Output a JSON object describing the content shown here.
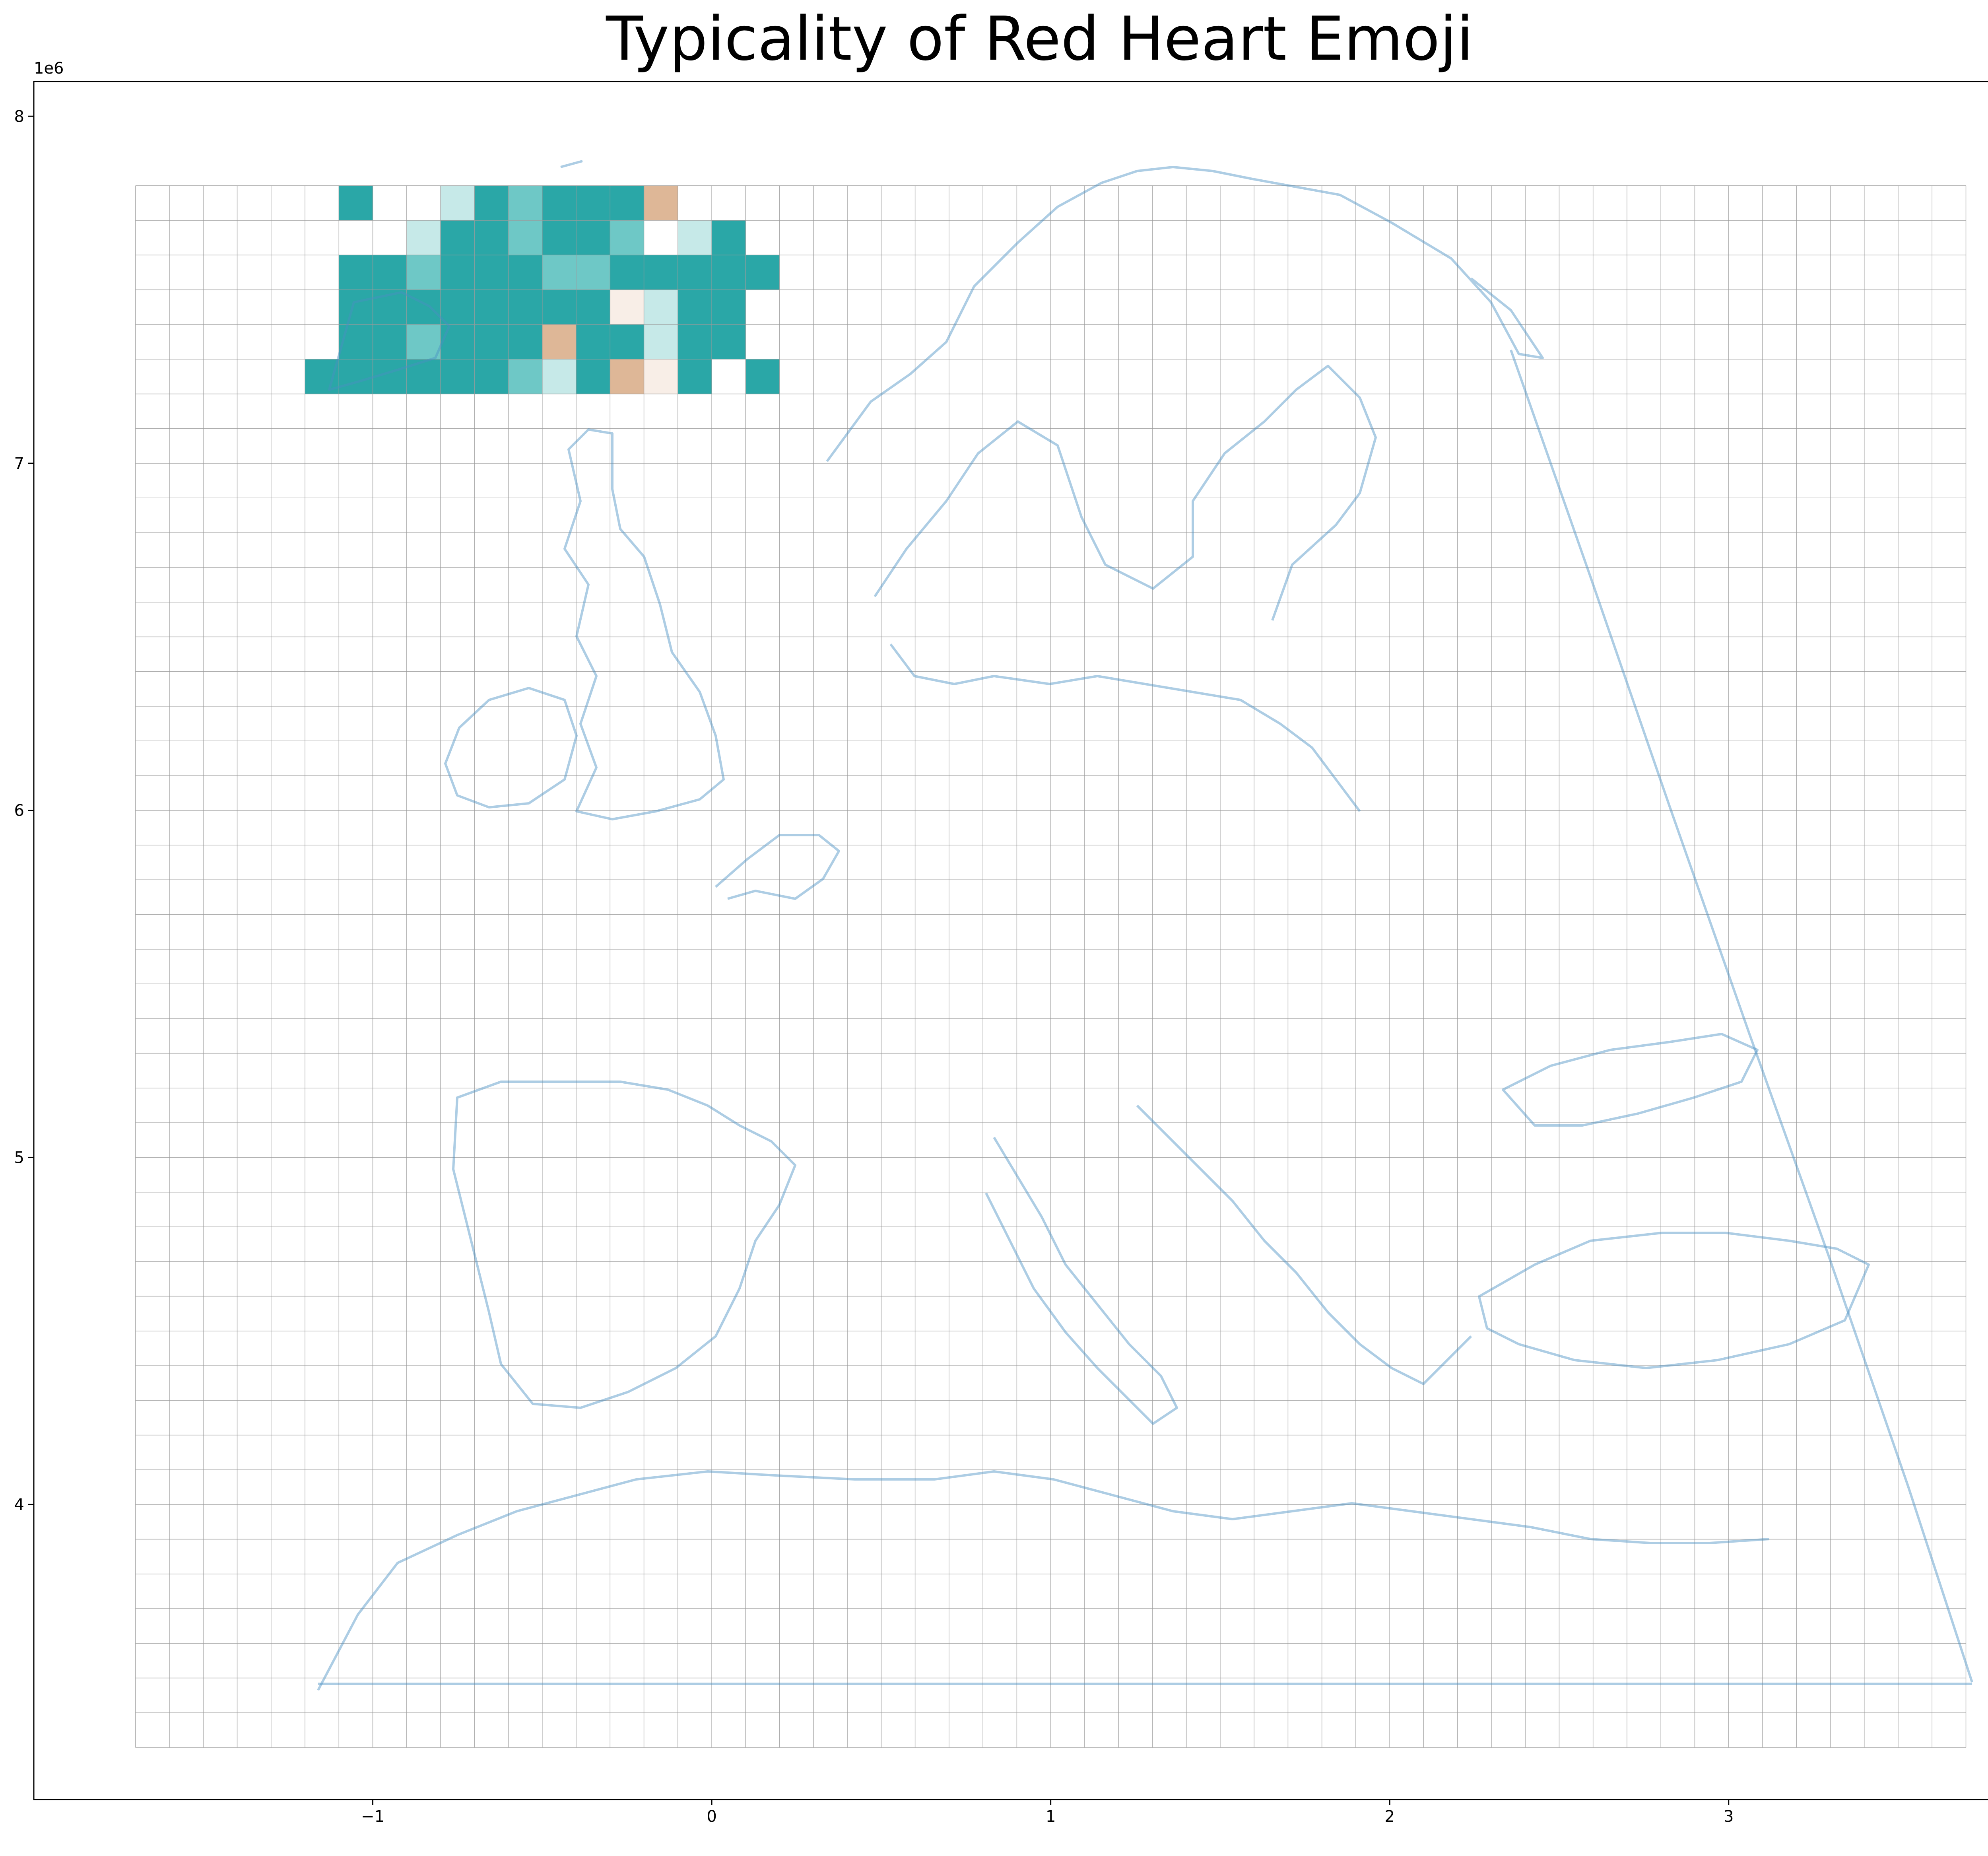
{
  "chart_data": {
    "type": "heatmap",
    "title": "Typicality of Red Heart Emoji",
    "x_ticks": [
      "−1",
      "0",
      "1",
      "2",
      "3"
    ],
    "x_tick_values": [
      -1000000,
      0,
      1000000,
      2000000,
      3000000
    ],
    "y_ticks": [
      "4",
      "5",
      "6",
      "7",
      "8"
    ],
    "y_tick_values": [
      4000000,
      5000000,
      6000000,
      7000000,
      8000000
    ],
    "x_offset_text": "1e6",
    "y_offset_text": "1e6",
    "xlim": [
      -2000000,
      3900000
    ],
    "ylim": [
      3150000,
      8100000
    ],
    "grid_extent": {
      "x": [
        -1700000,
        3700000
      ],
      "y": [
        3300000,
        7800000
      ]
    },
    "cell_size": 100000,
    "colors": {
      "teal_strong": "#2aa7a7",
      "teal_mid": "#6ec8c6",
      "teal_light": "#c6e9e8",
      "tan_strong": "#deb797",
      "tan_light": "#f1ddcf",
      "cream": "#f8eee7",
      "grid_line": "#9a9a9a",
      "coastline": "#4a90c4"
    },
    "color_scale": [
      "#2aa7a7",
      "#6ec8c6",
      "#c6e9e8",
      "#f8eee7",
      "#f1ddcf",
      "#deb797"
    ],
    "cells_legend": "value: 1 = strong teal ... 6 = strong tan (qualitative levels read from map)",
    "cells": [
      [
        6,
        7800000,
        6,
        0
      ],
      [
        9,
        7800000,
        2,
        0
      ],
      [
        10,
        7800000,
        0,
        0
      ],
      [
        11,
        7800000,
        1,
        0
      ],
      [
        12,
        7800000,
        6,
        0
      ],
      [
        13,
        7800000,
        6,
        0
      ],
      [
        14,
        7800000,
        0,
        0
      ],
      [
        15,
        7800000,
        5,
        0
      ],
      [
        8,
        7700000,
        2,
        0
      ],
      [
        9,
        7700000,
        0,
        0
      ],
      [
        10,
        7700000,
        0,
        0
      ],
      [
        11,
        7700000,
        1,
        0
      ],
      [
        12,
        7700000,
        0,
        0
      ],
      [
        13,
        7700000,
        6,
        0
      ],
      [
        14,
        7700000,
        1,
        0
      ],
      [
        16,
        7700000,
        2,
        0
      ],
      [
        17,
        7700000,
        6,
        0
      ],
      [
        6,
        7600000,
        6,
        0
      ],
      [
        7,
        7600000,
        6,
        0
      ],
      [
        8,
        7600000,
        1,
        0
      ],
      [
        9,
        7600000,
        6,
        0
      ],
      [
        10,
        7600000,
        0,
        0
      ],
      [
        11,
        7600000,
        6,
        0
      ],
      [
        12,
        7600000,
        1,
        0
      ],
      [
        13,
        7600000,
        1,
        0
      ],
      [
        14,
        7600000,
        0,
        0
      ],
      [
        15,
        7600000,
        0,
        0
      ],
      [
        16,
        7600000,
        0,
        0
      ],
      [
        17,
        7600000,
        6,
        0
      ],
      [
        18,
        7600000,
        6,
        0
      ],
      [
        6,
        7500000,
        6,
        0
      ],
      [
        7,
        7500000,
        0,
        0
      ],
      [
        8,
        7500000,
        0,
        0
      ],
      [
        9,
        7500000,
        6,
        0
      ],
      [
        10,
        7500000,
        0,
        0
      ],
      [
        11,
        7500000,
        0,
        0
      ],
      [
        12,
        7500000,
        6,
        0
      ],
      [
        13,
        7500000,
        0,
        0
      ],
      [
        14,
        7500000,
        3,
        0
      ],
      [
        15,
        7500000,
        2,
        0
      ],
      [
        16,
        7500000,
        6,
        0
      ],
      [
        17,
        7500000,
        6,
        0
      ],
      [
        6,
        7400000,
        6,
        0
      ],
      [
        7,
        7400000,
        0,
        0
      ],
      [
        8,
        7400000,
        1,
        0
      ],
      [
        9,
        7400000,
        6,
        0
      ],
      [
        10,
        7400000,
        0,
        0
      ],
      [
        11,
        7400000,
        6,
        0
      ],
      [
        12,
        7400000,
        5,
        0
      ],
      [
        13,
        7400000,
        0,
        0
      ],
      [
        14,
        7400000,
        6,
        0
      ],
      [
        15,
        7400000,
        2,
        0
      ],
      [
        16,
        7400000,
        0,
        0
      ],
      [
        17,
        7400000,
        6,
        0
      ],
      [
        5,
        7300000,
        6,
        0
      ],
      [
        6,
        7300000,
        6,
        0
      ],
      [
        7,
        7300000,
        0,
        0
      ],
      [
        8,
        7300000,
        0,
        0
      ],
      [
        9,
        7300000,
        6,
        0
      ],
      [
        10,
        7300000,
        0,
        0
      ],
      [
        11,
        7300000,
        1,
        0
      ],
      [
        12,
        7300000,
        2,
        0
      ],
      [
        13,
        7300000,
        6,
        0
      ],
      [
        14,
        7300000,
        5,
        0
      ],
      [
        15,
        7300000,
        3,
        0
      ],
      [
        16,
        7300000,
        6,
        0
      ],
      [
        18,
        7300000,
        6,
        0
      ]
    ]
  }
}
